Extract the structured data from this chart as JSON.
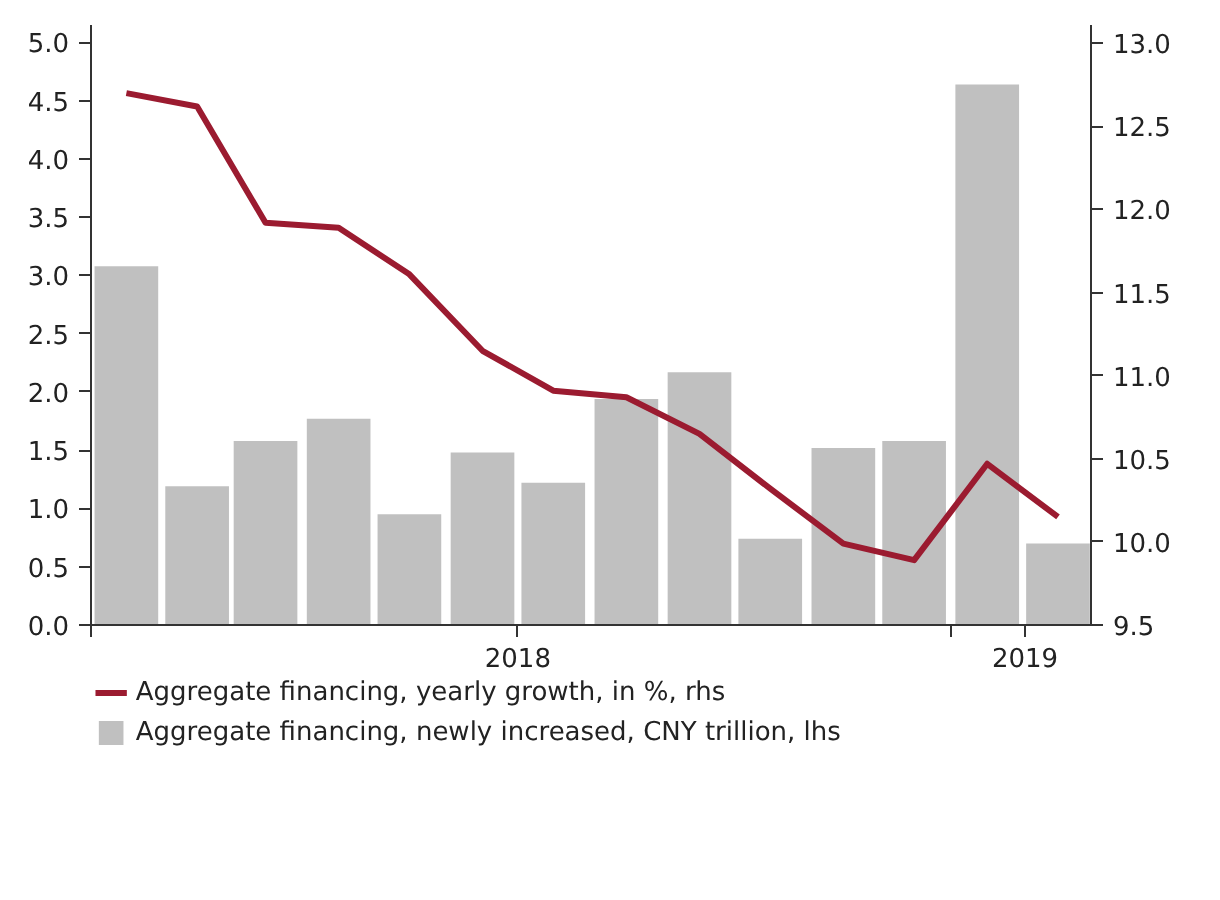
{
  "chart_data": {
    "type": "bar",
    "x": [
      "2018-01-16",
      "2018-02-15",
      "2018-03-16",
      "2018-04-16",
      "2018-05-16",
      "2018-06-16",
      "2018-07-16",
      "2018-08-16",
      "2018-09-16",
      "2018-10-16",
      "2018-11-16",
      "2018-12-16",
      "2019-01-16",
      "2019-02-15"
    ],
    "series": [
      {
        "name": "Aggregate financing, yearly growth, in %, rhs",
        "type": "line",
        "axis": "y2",
        "color": "#9b1b30",
        "values": [
          12.7,
          12.62,
          11.92,
          11.89,
          11.61,
          11.15,
          10.91,
          10.87,
          10.65,
          10.32,
          9.99,
          9.89,
          10.47,
          10.15
        ]
      },
      {
        "name": "Aggregate financing, newly increased, CNY trillion, lhs",
        "color": "#c0c0c0",
        "values": [
          3.08,
          1.19,
          1.58,
          1.77,
          0.95,
          1.48,
          1.22,
          1.94,
          2.17,
          0.74,
          1.52,
          1.58,
          4.64,
          0.7
        ]
      }
    ],
    "xlim": [
      "2018-01-01",
      "2019-03-01"
    ],
    "xticks": [
      {
        "value": "2018-01-01",
        "label": null
      },
      {
        "value": "2018-07-01",
        "label": "2018"
      },
      {
        "value": "2019-01-01",
        "label": null
      },
      {
        "value": "2019-02-01",
        "label": "2019"
      }
    ],
    "ylim": [
      0,
      5.15
    ],
    "yticks": [
      {
        "value": 0,
        "label": "0.0"
      },
      0.5,
      {
        "value": 1,
        "label": "1.0"
      },
      1.5,
      {
        "value": 2,
        "label": "2.0"
      },
      2.5,
      {
        "value": 3,
        "label": "3.0"
      },
      3.5,
      {
        "value": 4,
        "label": "4.0"
      },
      4.5,
      {
        "value": 5,
        "label": "5.0"
      }
    ],
    "y2lim": [
      9.5,
      13.11
    ],
    "y2ticks": [
      9.5,
      {
        "value": 10,
        "label": "10.0"
      },
      10.5,
      {
        "value": 11,
        "label": "11.0"
      },
      11.5,
      {
        "value": 12,
        "label": "12.0"
      },
      12.5,
      {
        "value": 13,
        "label": "13.0"
      }
    ],
    "legend": "bottom",
    "grid": false,
    "line_style": "solid"
  }
}
